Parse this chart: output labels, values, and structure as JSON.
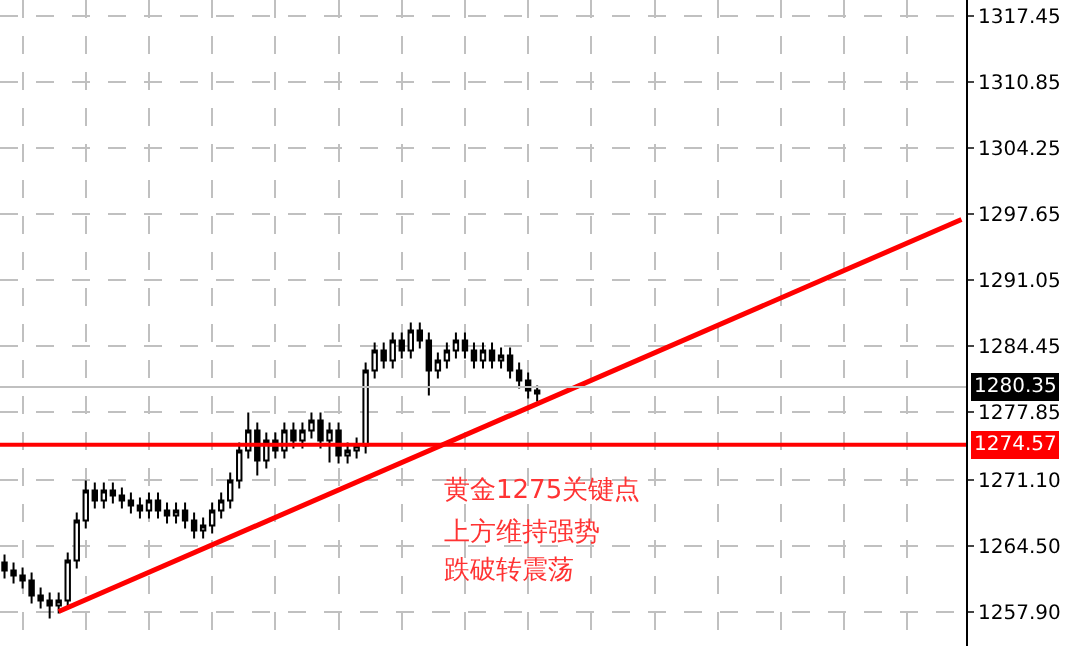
{
  "chart_data": {
    "type": "candlestick",
    "categories": [
      null,
      null,
      null,
      null,
      null,
      null,
      null,
      null,
      null,
      null,
      null,
      null,
      null,
      null,
      null,
      null,
      null,
      null,
      null,
      null,
      null,
      null,
      null,
      null,
      null,
      null,
      null,
      null,
      null,
      null,
      null,
      null,
      null,
      null,
      null,
      null,
      null,
      null,
      null,
      null,
      null,
      null,
      null,
      null,
      null,
      null,
      null,
      null,
      null,
      null,
      null,
      null,
      null,
      null,
      null,
      null,
      null,
      null,
      null,
      null,
      null,
      null,
      null,
      null,
      null,
      null,
      null,
      null,
      null,
      null,
      null,
      null,
      null,
      null,
      null,
      null,
      null,
      null,
      null,
      null,
      null,
      null,
      null,
      null,
      null,
      null,
      null,
      null,
      null,
      null,
      null,
      null,
      null,
      null,
      null,
      null,
      null,
      null,
      null,
      null,
      null,
      null,
      null,
      null,
      null,
      null,
      null
    ],
    "ohlc": [
      [
        1262.8,
        1263.6,
        1261.2,
        1262.0
      ],
      [
        1262.0,
        1262.8,
        1260.7,
        1261.5
      ],
      [
        1261.5,
        1262.3,
        1260.2,
        1261.0
      ],
      [
        1261.0,
        1261.8,
        1258.7,
        1259.5
      ],
      [
        1259.5,
        1260.3,
        1258.2,
        1259.0
      ],
      [
        1259.0,
        1259.8,
        1257.2,
        1258.5
      ],
      [
        1258.5,
        1259.8,
        1257.7,
        1259.0
      ],
      [
        1259.0,
        1263.8,
        1258.2,
        1263.0
      ],
      [
        1263.0,
        1267.8,
        1262.2,
        1267.0
      ],
      [
        1267.0,
        1271.0,
        1266.2,
        1270.0
      ],
      [
        1270.0,
        1270.8,
        1268.2,
        1269.0
      ],
      [
        1269.0,
        1270.8,
        1268.2,
        1270.0
      ],
      [
        1270.0,
        1270.8,
        1268.7,
        1269.5
      ],
      [
        1269.5,
        1270.3,
        1268.2,
        1269.0
      ],
      [
        1269.0,
        1269.8,
        1267.7,
        1268.5
      ],
      [
        1268.5,
        1269.3,
        1267.2,
        1268.0
      ],
      [
        1268.0,
        1269.8,
        1267.2,
        1269.0
      ],
      [
        1269.0,
        1269.8,
        1267.2,
        1268.0
      ],
      [
        1268.0,
        1268.8,
        1266.7,
        1267.5
      ],
      [
        1267.5,
        1268.8,
        1266.7,
        1268.0
      ],
      [
        1268.0,
        1268.8,
        1266.2,
        1267.0
      ],
      [
        1267.0,
        1267.8,
        1265.2,
        1266.0
      ],
      [
        1266.0,
        1267.3,
        1265.2,
        1266.5
      ],
      [
        1266.5,
        1268.8,
        1265.7,
        1268.0
      ],
      [
        1268.0,
        1269.8,
        1267.2,
        1269.0
      ],
      [
        1269.0,
        1271.8,
        1268.2,
        1271.0
      ],
      [
        1271.0,
        1274.8,
        1270.2,
        1274.0
      ],
      [
        1274.0,
        1277.8,
        1273.2,
        1276.0
      ],
      [
        1276.0,
        1276.8,
        1271.5,
        1273.0
      ],
      [
        1273.0,
        1275.8,
        1272.2,
        1275.0
      ],
      [
        1275.0,
        1275.8,
        1273.2,
        1274.0
      ],
      [
        1274.0,
        1276.8,
        1273.2,
        1276.0
      ],
      [
        1276.0,
        1276.8,
        1274.2,
        1275.0
      ],
      [
        1275.0,
        1276.8,
        1274.2,
        1276.0
      ],
      [
        1276.0,
        1277.8,
        1275.2,
        1277.0
      ],
      [
        1277.0,
        1277.8,
        1274.2,
        1275.0
      ],
      [
        1275.0,
        1276.8,
        1272.8,
        1276.0
      ],
      [
        1276.0,
        1276.8,
        1272.7,
        1273.5
      ],
      [
        1273.5,
        1274.8,
        1272.7,
        1274.0
      ],
      [
        1274.0,
        1275.3,
        1273.2,
        1274.5
      ],
      [
        1274.5,
        1282.8,
        1273.7,
        1282.0
      ],
      [
        1282.0,
        1284.8,
        1281.2,
        1284.0
      ],
      [
        1284.0,
        1284.8,
        1282.2,
        1283.0
      ],
      [
        1283.0,
        1285.8,
        1282.2,
        1285.0
      ],
      [
        1285.0,
        1285.8,
        1283.2,
        1284.0
      ],
      [
        1284.0,
        1286.8,
        1283.2,
        1286.0
      ],
      [
        1286.0,
        1286.8,
        1284.2,
        1285.0
      ],
      [
        1285.0,
        1285.8,
        1279.5,
        1282.0
      ],
      [
        1282.0,
        1283.8,
        1281.2,
        1283.0
      ],
      [
        1283.0,
        1284.8,
        1282.2,
        1284.0
      ],
      [
        1284.0,
        1285.8,
        1283.2,
        1285.0
      ],
      [
        1285.0,
        1285.8,
        1283.2,
        1284.0
      ],
      [
        1284.0,
        1284.8,
        1282.2,
        1283.0
      ],
      [
        1283.0,
        1284.8,
        1282.2,
        1284.0
      ],
      [
        1284.0,
        1284.8,
        1282.2,
        1283.0
      ],
      [
        1283.0,
        1284.3,
        1282.2,
        1283.5
      ],
      [
        1283.5,
        1284.3,
        1281.2,
        1282.0
      ],
      [
        1282.0,
        1282.8,
        1280.2,
        1281.0
      ],
      [
        1281.0,
        1281.8,
        1279.2,
        1280.0
      ],
      [
        1280.0,
        1280.5,
        1278.9,
        1279.7
      ],
      null,
      null,
      null,
      null,
      null,
      null,
      null,
      null,
      null,
      null,
      null,
      null,
      null,
      null,
      null,
      null,
      null,
      null,
      null,
      null,
      null,
      null,
      null,
      null,
      null,
      null,
      null,
      null,
      null,
      null,
      null,
      null,
      null,
      null,
      null,
      null,
      null,
      null,
      null,
      null,
      null,
      null,
      null,
      null,
      null,
      null,
      null
    ],
    "series": [
      {
        "type": "line",
        "color": "#ff0000",
        "values": [
          null,
          null,
          null,
          null,
          null,
          null,
          1257.9,
          null,
          null,
          null,
          null,
          null,
          null,
          null,
          null,
          null,
          null,
          null,
          null,
          null,
          null,
          null,
          null,
          null,
          null,
          null,
          null,
          null,
          null,
          null,
          null,
          null,
          null,
          null,
          null,
          null,
          null,
          null,
          null,
          null,
          null,
          null,
          null,
          null,
          null,
          null,
          null,
          null,
          null,
          null,
          null,
          null,
          null,
          null,
          null,
          null,
          null,
          null,
          null,
          null,
          null,
          null,
          null,
          null,
          null,
          null,
          null,
          null,
          null,
          null,
          null,
          null,
          null,
          null,
          null,
          null,
          null,
          null,
          null,
          null,
          null,
          null,
          null,
          null,
          null,
          null,
          null,
          null,
          null,
          null,
          null,
          null,
          null,
          null,
          null,
          null,
          null,
          null,
          null,
          null,
          null,
          null,
          null,
          null,
          null,
          null,
          1297.1
        ]
      }
    ],
    "ylim": [
      1254.45,
      1319.05
    ],
    "yticks": [
      {
        "value": 1257.9,
        "label": "1257.90"
      },
      {
        "value": 1264.5,
        "label": "1264.50"
      },
      {
        "value": 1271.1,
        "label": "1271.10"
      },
      1277.85,
      1284.45,
      1291.05,
      1297.65,
      1304.25,
      1310.85,
      1317.45
    ],
    "ref_lines": [
      {
        "axis": "y",
        "value": 1280.35,
        "label": "1280.35",
        "color": "#c0c0c0"
      },
      {
        "axis": "y",
        "value": 1274.57,
        "label": "1274.57",
        "color": "#ff0000"
      }
    ],
    "annotations": [
      "黄金1275关键点",
      "上方维持强势",
      "跌破转震荡"
    ],
    "grid": true,
    "tick_labels": "y"
  }
}
